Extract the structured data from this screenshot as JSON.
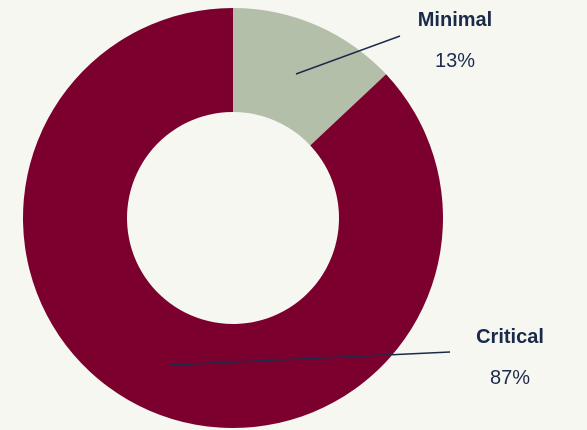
{
  "chart_data": {
    "type": "pie",
    "style": "donut",
    "slices": [
      {
        "label": "Minimal",
        "value": 13,
        "display": "13%",
        "color": "#b4bfaa"
      },
      {
        "label": "Critical",
        "value": 87,
        "display": "87%",
        "color": "#7b002d"
      }
    ],
    "start_angle": "12 o'clock",
    "direction": "clockwise",
    "legend": "none",
    "grid": false
  }
}
